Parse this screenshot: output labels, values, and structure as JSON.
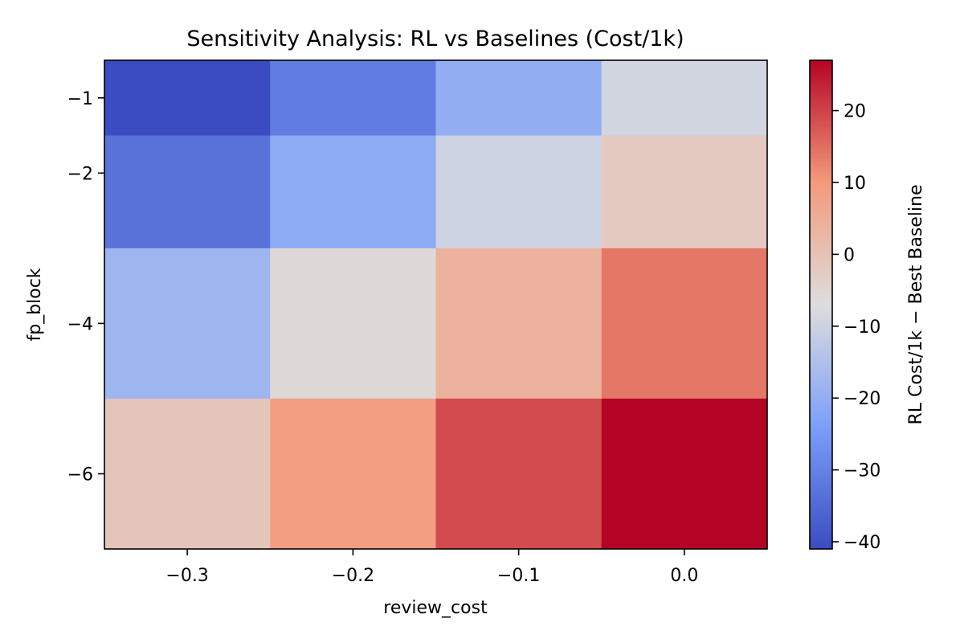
{
  "chart_data": {
    "type": "heatmap",
    "title": "Sensitivity Analysis: RL vs Baselines (Cost/1k)",
    "xlabel": "review_cost",
    "ylabel": "fp_block",
    "x_values": [
      -0.3,
      -0.2,
      -0.1,
      0.0
    ],
    "x_tick_labels": [
      "−0.3",
      "−0.2",
      "−0.1",
      "0.0"
    ],
    "y_values": [
      -1,
      -2,
      -4,
      -6
    ],
    "y_tick_labels": [
      "−1",
      "−2",
      "−4",
      "−6"
    ],
    "values": [
      [
        -41,
        -31,
        -20,
        -9
      ],
      [
        -33,
        -21,
        -10,
        -2
      ],
      [
        -18,
        -6,
        4,
        14
      ],
      [
        -1,
        9,
        19,
        27
      ]
    ],
    "colormap": "coolwarm",
    "colorbar": {
      "label": "RL Cost/1k − Best Baseline",
      "range": [
        -41,
        27
      ],
      "ticks": [
        -40,
        -30,
        -20,
        -10,
        0,
        10,
        20
      ],
      "tick_labels": [
        "−40",
        "−30",
        "−20",
        "−10",
        "0",
        "10",
        "20"
      ]
    },
    "grid": false
  }
}
